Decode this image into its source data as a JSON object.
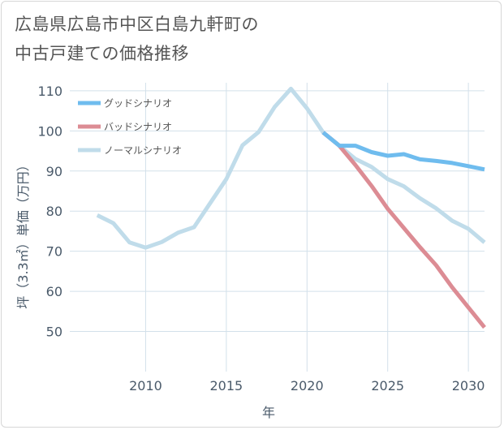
{
  "title_line1": "広島県広島市中区白島九軒町の",
  "title_line2": "中古戸建ての価格推移",
  "chart_data": {
    "type": "line",
    "title": "広島県広島市中区白島九軒町の中古戸建ての価格推移",
    "xlabel": "年",
    "ylabel": "坪（3.3㎡）単価（万円）",
    "xlim": [
      2005.3,
      2031
    ],
    "ylim": [
      40,
      112
    ],
    "xticks": [
      2010,
      2015,
      2020,
      2025,
      2030
    ],
    "yticks": [
      50,
      60,
      70,
      80,
      90,
      100,
      110
    ],
    "grid": true,
    "legend_position": "top-left",
    "series": [
      {
        "name": "ノーマルシナリオ",
        "color": "#c0dcea",
        "x": [
          2007,
          2008,
          2009,
          2010,
          2011,
          2012,
          2013,
          2014,
          2015,
          2016,
          2017,
          2018,
          2019,
          2020,
          2021,
          2022,
          2023,
          2024,
          2025,
          2026,
          2027,
          2028,
          2029,
          2030,
          2031
        ],
        "values": [
          79,
          77,
          72.2,
          70.9,
          72.3,
          74.6,
          76,
          82,
          88,
          96.4,
          99.7,
          106,
          110.5,
          105.6,
          99.6,
          96.3,
          93,
          91,
          88,
          86.2,
          83.2,
          80.7,
          77.6,
          75.6,
          72.2
        ]
      },
      {
        "name": "バッドシナリオ",
        "color": "#dc8c94",
        "x": [
          2021,
          2022,
          2023,
          2024,
          2025,
          2026,
          2027,
          2028,
          2029,
          2030,
          2031
        ],
        "values": [
          99.6,
          96.3,
          91.5,
          86.3,
          80.6,
          75.8,
          71,
          66.5,
          61,
          56,
          51
        ]
      },
      {
        "name": "グッドシナリオ",
        "color": "#6fbcee",
        "x": [
          2021,
          2022,
          2023,
          2024,
          2025,
          2026,
          2027,
          2028,
          2029,
          2030,
          2031
        ],
        "values": [
          99.6,
          96.3,
          96.3,
          94.7,
          93.8,
          94.2,
          92.9,
          92.5,
          92,
          91.2,
          90.4
        ]
      }
    ],
    "legend": [
      "グッドシナリオ",
      "バッドシナリオ",
      "ノーマルシナリオ"
    ]
  },
  "colors": {
    "grid": "#d3e0ea",
    "axis_text": "#4a5a6a",
    "title": "#555555",
    "frame": "#d6d6d6"
  }
}
